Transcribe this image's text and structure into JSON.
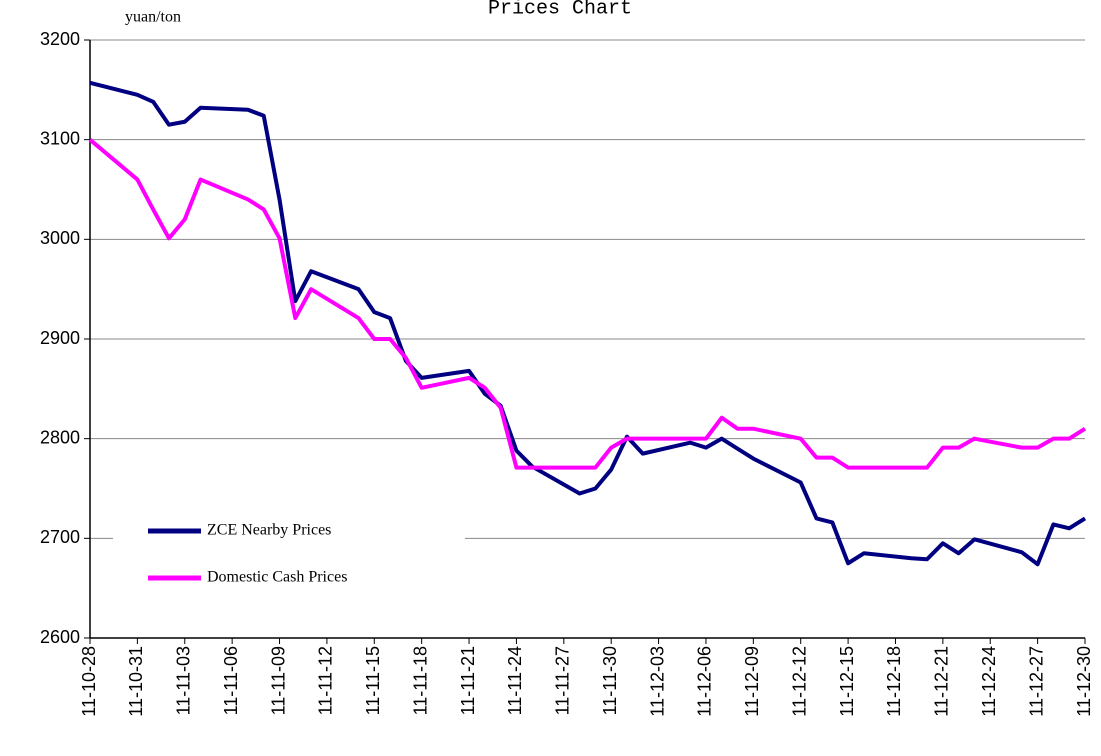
{
  "chart_data": {
    "type": "line",
    "title": "Prices Chart",
    "y_axis_label": "yuan/ton",
    "x": [
      "11-10-28",
      "11-10-31",
      "11-11-01",
      "11-11-02",
      "11-11-03",
      "11-11-04",
      "11-11-07",
      "11-11-08",
      "11-11-09",
      "11-11-10",
      "11-11-11",
      "11-11-14",
      "11-11-15",
      "11-11-16",
      "11-11-17",
      "11-11-18",
      "11-11-21",
      "11-11-22",
      "11-11-23",
      "11-11-24",
      "11-11-25",
      "11-11-28",
      "11-11-29",
      "11-11-30",
      "11-12-01",
      "11-12-02",
      "11-12-05",
      "11-12-06",
      "11-12-07",
      "11-12-08",
      "11-12-09",
      "11-12-12",
      "11-12-13",
      "11-12-14",
      "11-12-15",
      "11-12-16",
      "11-12-19",
      "11-12-20",
      "11-12-21",
      "11-12-22",
      "11-12-23",
      "11-12-26",
      "11-12-27",
      "11-12-28",
      "11-12-29",
      "11-12-30"
    ],
    "series": [
      {
        "name": "ZCE Nearby Prices",
        "color": "#000080",
        "values": [
          3157,
          3145,
          3138,
          3115,
          3118,
          3132,
          3130,
          3124,
          3040,
          2938,
          2968,
          2950,
          2927,
          2921,
          2878,
          2861,
          2868,
          2845,
          2833,
          2788,
          2772,
          2745,
          2750,
          2769,
          2802,
          2785,
          2796,
          2791,
          2800,
          2790,
          2780,
          2756,
          2720,
          2716,
          2675,
          2685,
          2680,
          2679,
          2695,
          2685,
          2699,
          2686,
          2674,
          2714,
          2710,
          2720
        ]
      },
      {
        "name": "Domestic Cash Prices",
        "color": "#ff00ff",
        "values": [
          3100,
          3060,
          3030,
          3001,
          3020,
          3060,
          3040,
          3030,
          3001,
          2921,
          2950,
          2921,
          2900,
          2900,
          2881,
          2851,
          2861,
          2851,
          2831,
          2771,
          2771,
          2771,
          2771,
          2791,
          2800,
          2800,
          2800,
          2800,
          2821,
          2810,
          2810,
          2800,
          2781,
          2781,
          2771,
          2771,
          2771,
          2771,
          2791,
          2791,
          2800,
          2791,
          2791,
          2800,
          2800,
          2810
        ]
      }
    ],
    "xlim": [
      "11-10-28",
      "11-12-30"
    ],
    "xticks": [
      "11-10-28",
      "11-10-31",
      "11-11-03",
      "11-11-06",
      "11-11-09",
      "11-11-12",
      "11-11-15",
      "11-11-18",
      "11-11-21",
      "11-11-24",
      "11-11-27",
      "11-11-30",
      "11-12-03",
      "11-12-06",
      "11-12-09",
      "11-12-12",
      "11-12-15",
      "11-12-18",
      "11-12-21",
      "11-12-24",
      "11-12-27",
      "11-12-30"
    ],
    "ylim": [
      2600,
      3200
    ],
    "yticks": [
      2600,
      2700,
      2800,
      2900,
      3000,
      3100,
      3200
    ],
    "grid": true,
    "legend": "lower left"
  }
}
